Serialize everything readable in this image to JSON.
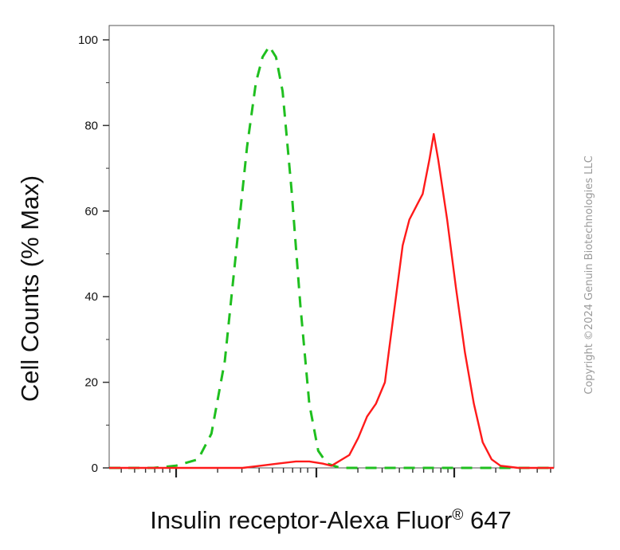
{
  "chart_data": {
    "type": "line",
    "title": "",
    "xlabel_main": "Insulin receptor-Alexa Fluor",
    "xlabel_reg": "®",
    "xlabel_tail": " 647",
    "ylabel": "Cell Counts (% Max)",
    "ylim": [
      0,
      105
    ],
    "x_scale": "log",
    "x_tick_labels": [],
    "y_ticks": [
      0,
      20,
      40,
      60,
      80,
      100
    ],
    "y_tick_labels": [
      "0",
      "20",
      "40",
      "60",
      "80",
      "100"
    ],
    "grid": false,
    "legend": "none",
    "series": [
      {
        "color": "#1fbf1f",
        "dash": "dashed",
        "points": [
          [
            0.0,
            0
          ],
          [
            0.1,
            0
          ],
          [
            0.15,
            0.5
          ],
          [
            0.2,
            2
          ],
          [
            0.23,
            8
          ],
          [
            0.26,
            25
          ],
          [
            0.29,
            55
          ],
          [
            0.31,
            75
          ],
          [
            0.33,
            90
          ],
          [
            0.345,
            96
          ],
          [
            0.36,
            98.5
          ],
          [
            0.375,
            96
          ],
          [
            0.39,
            88
          ],
          [
            0.41,
            65
          ],
          [
            0.43,
            38
          ],
          [
            0.45,
            15
          ],
          [
            0.47,
            4
          ],
          [
            0.49,
            1
          ],
          [
            0.52,
            0
          ],
          [
            1.0,
            0
          ]
        ]
      },
      {
        "color": "#ff1a1a",
        "dash": "solid",
        "points": [
          [
            0.0,
            0
          ],
          [
            0.3,
            0
          ],
          [
            0.34,
            0.5
          ],
          [
            0.38,
            1
          ],
          [
            0.42,
            1.5
          ],
          [
            0.45,
            1.5
          ],
          [
            0.48,
            1
          ],
          [
            0.5,
            0.5
          ],
          [
            0.54,
            3
          ],
          [
            0.56,
            7
          ],
          [
            0.58,
            12
          ],
          [
            0.6,
            15
          ],
          [
            0.62,
            20
          ],
          [
            0.63,
            28
          ],
          [
            0.645,
            40
          ],
          [
            0.66,
            52
          ],
          [
            0.675,
            58
          ],
          [
            0.69,
            61
          ],
          [
            0.705,
            64
          ],
          [
            0.72,
            72
          ],
          [
            0.73,
            78
          ],
          [
            0.74,
            72
          ],
          [
            0.76,
            58
          ],
          [
            0.78,
            42
          ],
          [
            0.8,
            27
          ],
          [
            0.82,
            15
          ],
          [
            0.84,
            6
          ],
          [
            0.86,
            2
          ],
          [
            0.88,
            0.5
          ],
          [
            0.92,
            0
          ],
          [
            1.0,
            0
          ]
        ]
      }
    ]
  },
  "copyright": "Copyright ©2024 Genuin Biotechnologies LLC"
}
